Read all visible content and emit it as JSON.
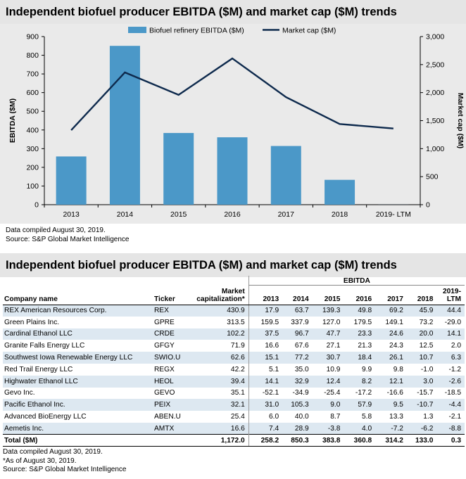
{
  "chart": {
    "title": "Independent biofuel producer EBITDA ($M) and market cap ($M) trends",
    "legend": {
      "bar_label": "Biofuel refinery EBITDA ($M)",
      "line_label": "Market cap ($M)"
    },
    "notes": [
      "Data compiled August 30, 2019.",
      "Source: S&P Global Market Intelligence"
    ]
  },
  "chart_data": {
    "type": "bar",
    "title": "Independent biofuel producer EBITDA ($M) and market cap ($M) trends",
    "categories": [
      "2013",
      "2014",
      "2015",
      "2016",
      "2017",
      "2018",
      "2019- LTM"
    ],
    "ylabel": "EBITDA ($M)",
    "y2label": "Market cap ($M)",
    "ylim": [
      0,
      900
    ],
    "y2lim": [
      0,
      3000
    ],
    "yticks": [
      0,
      100,
      200,
      300,
      400,
      500,
      600,
      700,
      800,
      900
    ],
    "y2ticks": [
      0,
      500,
      1000,
      1500,
      2000,
      2500,
      3000
    ],
    "ytick_labels": [
      "0",
      "100",
      "200",
      "300",
      "400",
      "500",
      "600",
      "700",
      "800",
      "900"
    ],
    "y2tick_labels": [
      "0",
      "500",
      "1,000",
      "1,500",
      "2,000",
      "2,500",
      "3,000"
    ],
    "legend_position": "top",
    "grid": false,
    "bar_color": "#4b98c8",
    "line_color": "#0e2a4d",
    "series": [
      {
        "name": "Biofuel refinery EBITDA ($M)",
        "kind": "bar",
        "axis": "left",
        "values": [
          258.2,
          850.3,
          383.8,
          360.8,
          314.2,
          133.0,
          0.3
        ]
      },
      {
        "name": "Market cap ($M)",
        "kind": "line",
        "axis": "right",
        "values": [
          1330,
          2360,
          1960,
          2610,
          1920,
          1440,
          1360
        ]
      }
    ]
  },
  "table": {
    "title": "Independent biofuel producer EBITDA ($M) and market cap ($M) trends",
    "group_header": "EBITDA",
    "headers": {
      "company": "Company name",
      "ticker": "Ticker",
      "mcap_line1": "Market",
      "mcap_line2": "capitalization*",
      "years": [
        "2013",
        "2014",
        "2015",
        "2016",
        "2017",
        "2018"
      ],
      "ltm_line1": "2019-",
      "ltm_line2": "LTM"
    },
    "rows": [
      {
        "company": "REX American Resources Corp.",
        "ticker": "REX",
        "mcap": "430.9",
        "v": [
          "17.9",
          "63.7",
          "139.3",
          "49.8",
          "69.2",
          "45.9",
          "44.4"
        ]
      },
      {
        "company": "Green Plains Inc.",
        "ticker": "GPRE",
        "mcap": "313.5",
        "v": [
          "159.5",
          "337.9",
          "127.0",
          "179.5",
          "149.1",
          "73.2",
          "-29.0"
        ]
      },
      {
        "company": "Cardinal Ethanol LLC",
        "ticker": "CRDE",
        "mcap": "102.2",
        "v": [
          "37.5",
          "96.7",
          "47.7",
          "23.3",
          "24.6",
          "20.0",
          "14.1"
        ]
      },
      {
        "company": "Granite Falls Energy LLC",
        "ticker": "GFGY",
        "mcap": "71.9",
        "v": [
          "16.6",
          "67.6",
          "27.1",
          "21.3",
          "24.3",
          "12.5",
          "2.0"
        ]
      },
      {
        "company": "Southwest Iowa Renewable Energy LLC",
        "ticker": "SWIO.U",
        "mcap": "62.6",
        "v": [
          "15.1",
          "77.2",
          "30.7",
          "18.4",
          "26.1",
          "10.7",
          "6.3"
        ]
      },
      {
        "company": "Red Trail Energy LLC",
        "ticker": "REGX",
        "mcap": "42.2",
        "v": [
          "5.1",
          "35.0",
          "10.9",
          "9.9",
          "9.8",
          "-1.0",
          "-1.2"
        ]
      },
      {
        "company": "Highwater Ethanol LLC",
        "ticker": "HEOL",
        "mcap": "39.4",
        "v": [
          "14.1",
          "32.9",
          "12.4",
          "8.2",
          "12.1",
          "3.0",
          "-2.6"
        ]
      },
      {
        "company": "Gevo Inc.",
        "ticker": "GEVO",
        "mcap": "35.1",
        "v": [
          "-52.1",
          "-34.9",
          "-25.4",
          "-17.2",
          "-16.6",
          "-15.7",
          "-18.5"
        ]
      },
      {
        "company": "Pacific Ethanol Inc.",
        "ticker": "PEIX",
        "mcap": "32.1",
        "v": [
          "31.0",
          "105.3",
          "9.0",
          "57.9",
          "9.5",
          "-10.7",
          "-4.4"
        ]
      },
      {
        "company": "Advanced BioEnergy LLC",
        "ticker": "ABEN.U",
        "mcap": "25.4",
        "v": [
          "6.0",
          "40.0",
          "8.7",
          "5.8",
          "13.3",
          "1.3",
          "-2.1"
        ]
      },
      {
        "company": "Aemetis Inc.",
        "ticker": "AMTX",
        "mcap": "16.6",
        "v": [
          "7.4",
          "28.9",
          "-3.8",
          "4.0",
          "-7.2",
          "-6.2",
          "-8.8"
        ]
      }
    ],
    "total": {
      "company": "Total ($M)",
      "ticker": "",
      "mcap": "1,172.0",
      "v": [
        "258.2",
        "850.3",
        "383.8",
        "360.8",
        "314.2",
        "133.0",
        "0.3"
      ]
    },
    "notes": [
      "Data compiled August 30, 2019.",
      "*As of August 30, 2019.",
      "Source: S&P Global Market Intelligence"
    ]
  }
}
